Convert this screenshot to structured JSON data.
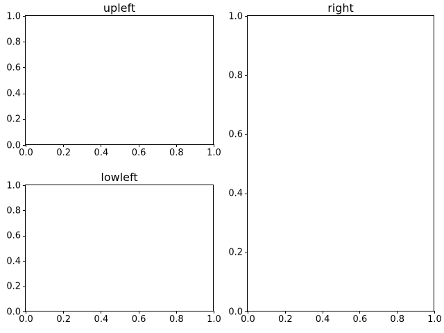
{
  "figure": {
    "background_color": "#ffffff",
    "text_color": "#000000",
    "spine_color": "#000000",
    "subplots": [
      {
        "id": "upleft",
        "title": "upleft",
        "xlim": [
          0,
          1
        ],
        "ylim": [
          0,
          1
        ],
        "x_ticks": [
          "0.0",
          "0.2",
          "0.4",
          "0.6",
          "0.8",
          "1.0"
        ],
        "y_ticks": [
          "0.0",
          "0.2",
          "0.4",
          "0.6",
          "0.8",
          "1.0"
        ]
      },
      {
        "id": "lowleft",
        "title": "lowleft",
        "xlim": [
          0,
          1
        ],
        "ylim": [
          0,
          1
        ],
        "x_ticks": [
          "0.0",
          "0.2",
          "0.4",
          "0.6",
          "0.8",
          "1.0"
        ],
        "y_ticks": [
          "0.0",
          "0.2",
          "0.4",
          "0.6",
          "0.8",
          "1.0"
        ]
      },
      {
        "id": "right",
        "title": "right",
        "xlim": [
          0,
          1
        ],
        "ylim": [
          0,
          1
        ],
        "x_ticks": [
          "0.0",
          "0.2",
          "0.4",
          "0.6",
          "0.8",
          "1.0"
        ],
        "y_ticks": [
          "0.0",
          "0.2",
          "0.4",
          "0.6",
          "0.8",
          "1.0"
        ]
      }
    ]
  },
  "chart_data": [
    {
      "type": "line",
      "title": "upleft",
      "x": [],
      "series": [],
      "xlabel": "",
      "ylabel": "",
      "xlim": [
        0,
        1
      ],
      "ylim": [
        0,
        1
      ],
      "x_ticks": [
        0.0,
        0.2,
        0.4,
        0.6,
        0.8,
        1.0
      ],
      "y_ticks": [
        0.0,
        0.2,
        0.4,
        0.6,
        0.8,
        1.0
      ],
      "grid": false,
      "legend": null
    },
    {
      "type": "line",
      "title": "lowleft",
      "x": [],
      "series": [],
      "xlabel": "",
      "ylabel": "",
      "xlim": [
        0,
        1
      ],
      "ylim": [
        0,
        1
      ],
      "x_ticks": [
        0.0,
        0.2,
        0.4,
        0.6,
        0.8,
        1.0
      ],
      "y_ticks": [
        0.0,
        0.2,
        0.4,
        0.6,
        0.8,
        1.0
      ],
      "grid": false,
      "legend": null
    },
    {
      "type": "line",
      "title": "right",
      "x": [],
      "series": [],
      "xlabel": "",
      "ylabel": "",
      "xlim": [
        0,
        1
      ],
      "ylim": [
        0,
        1
      ],
      "x_ticks": [
        0.0,
        0.2,
        0.4,
        0.6,
        0.8,
        1.0
      ],
      "y_ticks": [
        0.0,
        0.2,
        0.4,
        0.6,
        0.8,
        1.0
      ],
      "grid": false,
      "legend": null
    }
  ]
}
